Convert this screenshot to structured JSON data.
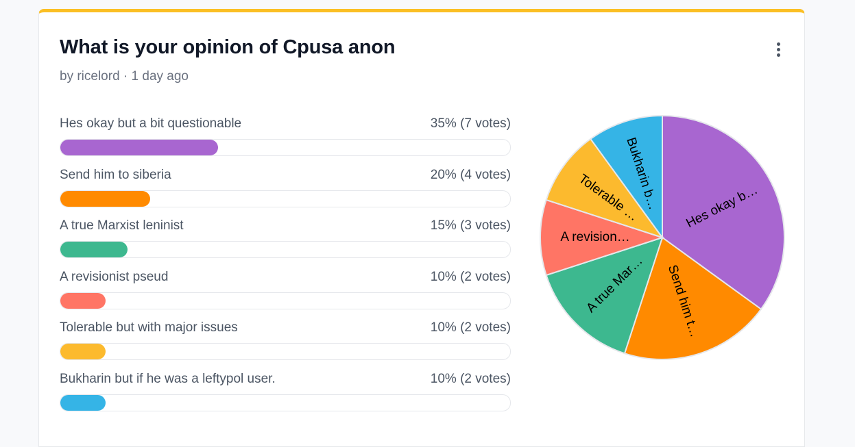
{
  "poll": {
    "title": "What is your opinion of Cpusa anon",
    "meta": "by ricelord · 1 day ago"
  },
  "accent_color": "#fbbf24",
  "menu_icon": "more-vertical-icon",
  "options": [
    {
      "label": "Hes okay but a bit questionable",
      "result": "35% (7 votes)",
      "percent": 35,
      "votes": 7,
      "color": "#a866d0"
    },
    {
      "label": "Send him to siberia",
      "result": "20% (4 votes)",
      "percent": 20,
      "votes": 4,
      "color": "#ff8a00"
    },
    {
      "label": "A true Marxist leninist",
      "result": "15% (3 votes)",
      "percent": 15,
      "votes": 3,
      "color": "#3db88f"
    },
    {
      "label": "A revisionist pseud",
      "result": "10% (2 votes)",
      "percent": 10,
      "votes": 2,
      "color": "#ff7565"
    },
    {
      "label": "Tolerable but with major issues",
      "result": "10% (2 votes)",
      "percent": 10,
      "votes": 2,
      "color": "#fcba2e"
    },
    {
      "label": "Bukharin but if he was a leftypol user.",
      "result": "10% (2 votes)",
      "percent": 10,
      "votes": 2,
      "color": "#35b4e6"
    }
  ],
  "chart_data": {
    "type": "pie",
    "title": "",
    "slices": [
      {
        "label": "Hes okay b…",
        "value": 35,
        "color": "#a866d0"
      },
      {
        "label": "Send him t…",
        "value": 20,
        "color": "#ff8a00"
      },
      {
        "label": "A true Mar…",
        "value": 15,
        "color": "#3db88f"
      },
      {
        "label": "A revision…",
        "value": 10,
        "color": "#ff7565"
      },
      {
        "label": "Tolerable …",
        "value": 10,
        "color": "#fcba2e"
      },
      {
        "label": "Bukharin b…",
        "value": 10,
        "color": "#35b4e6"
      }
    ]
  }
}
